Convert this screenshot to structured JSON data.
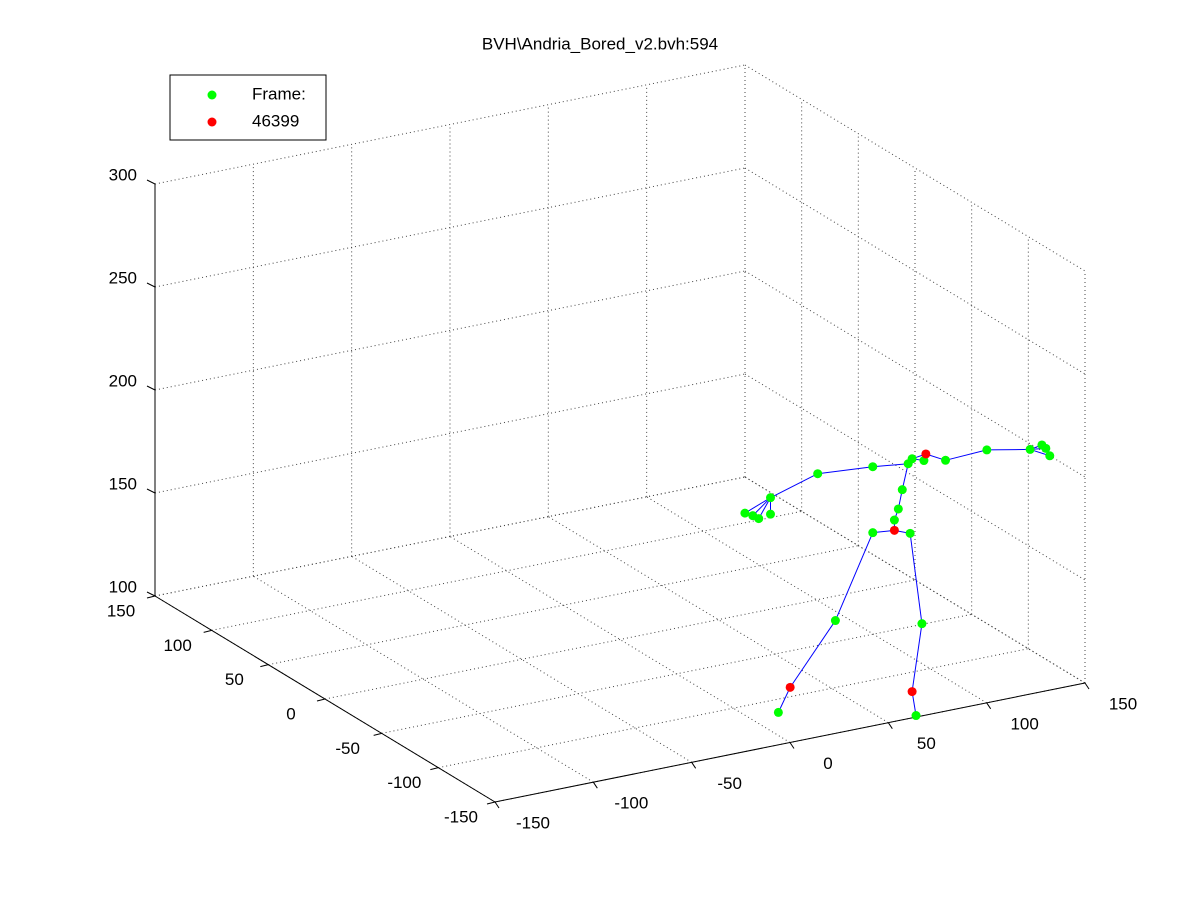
{
  "chart_data": {
    "type": "scatter3d",
    "title": "BVH\\Andria_Bored_v2.bvh:594",
    "series": [
      {
        "name": "Frame:",
        "color": "#00ff00",
        "x": [
          117,
          136,
          98,
          69,
          142,
          139,
          128,
          130,
          132,
          135,
          137,
          143,
          154,
          175,
          197,
          205,
          207,
          203,
          117,
          89,
          65,
          56,
          59,
          65,
          52
        ],
        "y": [
          -20,
          -20,
          -20,
          -20,
          -20,
          -20,
          -20,
          -20,
          -20,
          -20,
          -20,
          -20,
          -20,
          -20,
          -20,
          -20,
          -20,
          -20,
          -20,
          -20,
          -20,
          -20,
          -20,
          -20,
          -20
        ],
        "z": [
          136,
          132,
          97,
          58,
          87,
          43,
          140,
          145,
          154,
          166,
          168,
          166,
          164,
          165,
          161,
          160,
          156,
          162,
          168,
          170,
          163,
          156,
          154,
          155,
          158
        ]
      },
      {
        "name": "46399",
        "color": "#ff0000",
        "x": [
          128,
          75,
          137,
          144
        ],
        "y": [
          -20,
          -20,
          -20,
          -20
        ],
        "z": [
          135,
          69,
          55,
          169
        ]
      }
    ],
    "edges": [
      [
        [
          1,
          0
        ],
        [
          0,
          0
        ]
      ],
      [
        [
          1,
          0
        ],
        [
          0,
          1
        ]
      ],
      [
        [
          0,
          0
        ],
        [
          0,
          2
        ]
      ],
      [
        [
          0,
          2
        ],
        [
          1,
          1
        ]
      ],
      [
        [
          1,
          1
        ],
        [
          0,
          3
        ]
      ],
      [
        [
          0,
          1
        ],
        [
          0,
          4
        ]
      ],
      [
        [
          0,
          4
        ],
        [
          1,
          2
        ]
      ],
      [
        [
          1,
          2
        ],
        [
          0,
          5
        ]
      ],
      [
        [
          1,
          0
        ],
        [
          0,
          6
        ]
      ],
      [
        [
          0,
          6
        ],
        [
          0,
          7
        ]
      ],
      [
        [
          0,
          7
        ],
        [
          0,
          8
        ]
      ],
      [
        [
          0,
          8
        ],
        [
          0,
          9
        ]
      ],
      [
        [
          0,
          9
        ],
        [
          0,
          10
        ]
      ],
      [
        [
          0,
          10
        ],
        [
          0,
          11
        ]
      ],
      [
        [
          0,
          10
        ],
        [
          1,
          3
        ]
      ],
      [
        [
          1,
          3
        ],
        [
          0,
          12
        ]
      ],
      [
        [
          0,
          12
        ],
        [
          0,
          13
        ]
      ],
      [
        [
          0,
          13
        ],
        [
          0,
          14
        ]
      ],
      [
        [
          0,
          14
        ],
        [
          0,
          15
        ]
      ],
      [
        [
          0,
          14
        ],
        [
          0,
          16
        ]
      ],
      [
        [
          0,
          14
        ],
        [
          0,
          17
        ]
      ],
      [
        [
          0,
          9
        ],
        [
          0,
          18
        ]
      ],
      [
        [
          0,
          18
        ],
        [
          0,
          19
        ]
      ],
      [
        [
          0,
          19
        ],
        [
          0,
          20
        ]
      ],
      [
        [
          0,
          20
        ],
        [
          0,
          21
        ]
      ],
      [
        [
          0,
          20
        ],
        [
          0,
          22
        ]
      ],
      [
        [
          0,
          20
        ],
        [
          0,
          23
        ]
      ],
      [
        [
          0,
          20
        ],
        [
          0,
          24
        ]
      ]
    ],
    "edge_color": "#0000ff",
    "xlim": [
      -150,
      150
    ],
    "ylim": [
      -150,
      150
    ],
    "zlim": [
      100,
      300
    ],
    "xticks": [
      -150,
      -100,
      -50,
      0,
      50,
      100,
      150
    ],
    "yticks": [
      -150,
      -100,
      -50,
      0,
      50,
      100,
      150
    ],
    "zticks": [
      100,
      150,
      200,
      250,
      300
    ],
    "grid": true,
    "legend": "upper left"
  }
}
